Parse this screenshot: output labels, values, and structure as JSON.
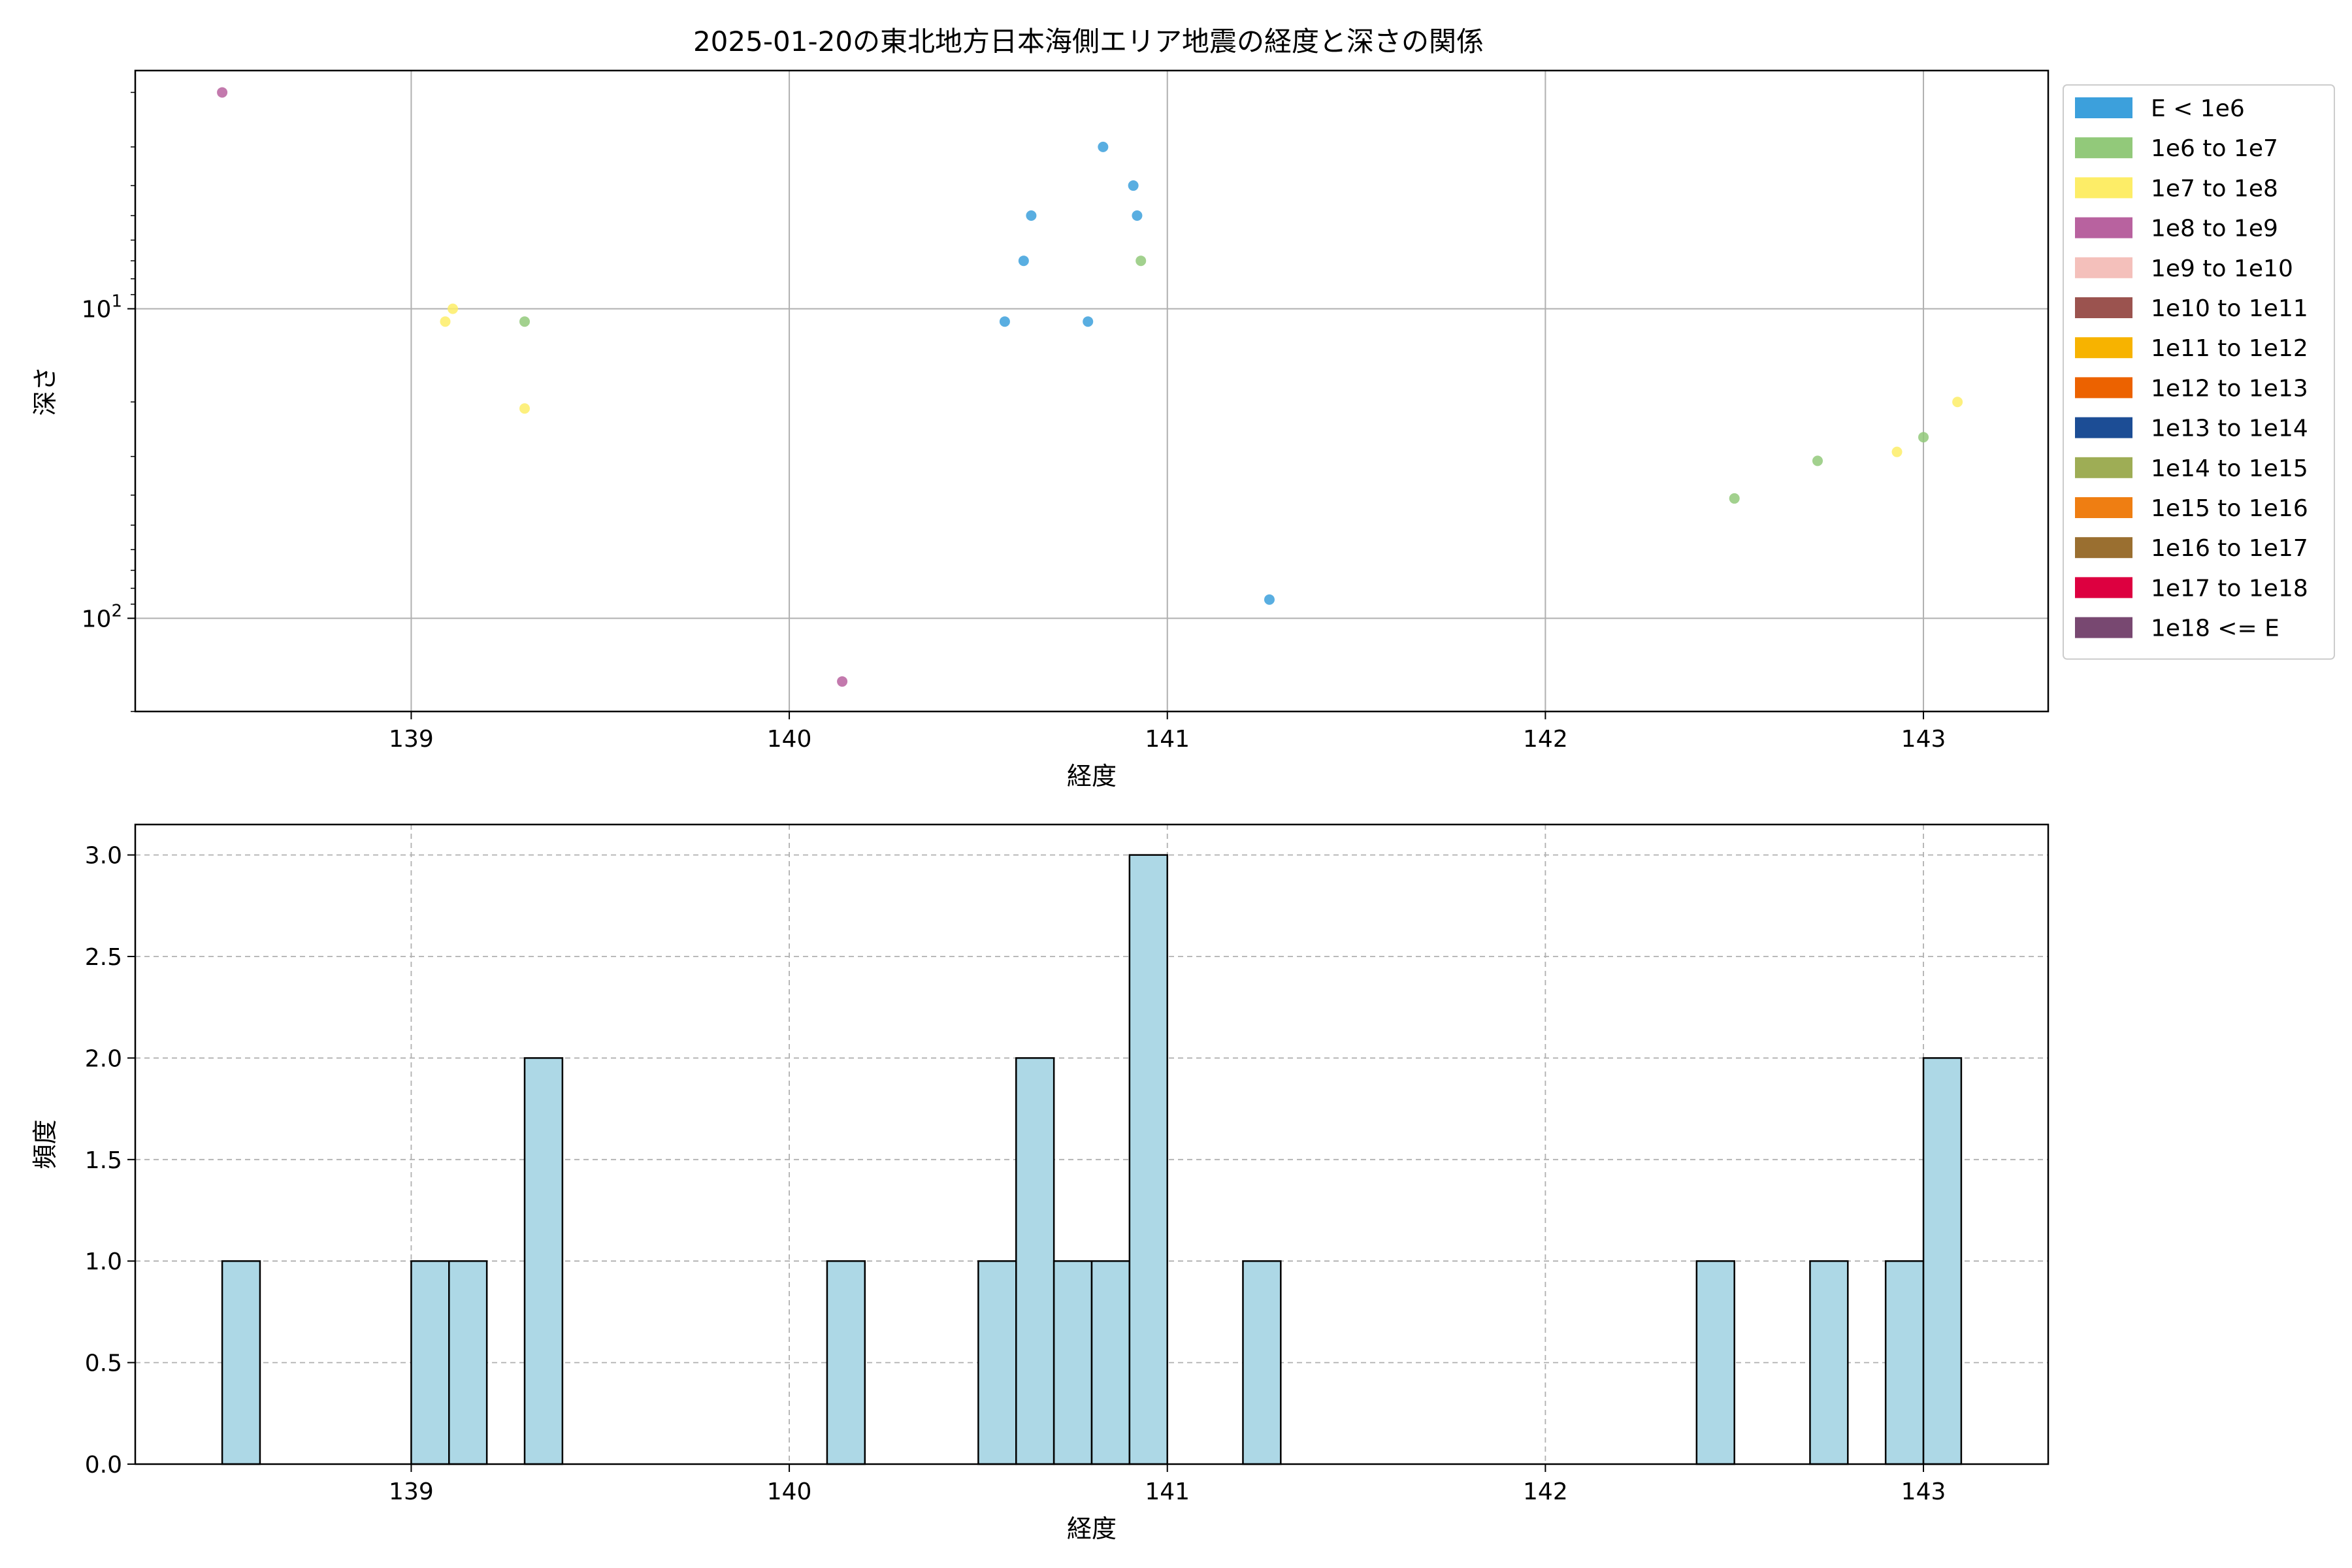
{
  "title": "2025-01-20の東北地方日本海側エリア地震の経度と深さの関係",
  "chart_data": [
    {
      "type": "scatter",
      "title": "2025-01-20の東北地方日本海側エリア地震の経度と深さの関係",
      "xlabel": "経度",
      "ylabel": "深さ",
      "xlim": [
        138.27,
        143.33
      ],
      "ylim": [
        200,
        1.7
      ],
      "y_scale": "log",
      "y_inverted": true,
      "grid": true,
      "legend_position": "outside-right",
      "xticks": [
        "139",
        "140",
        "141",
        "142",
        "143"
      ],
      "yticks": [
        {
          "value": 10,
          "base": "10",
          "exp": "1"
        },
        {
          "value": 100,
          "base": "10",
          "exp": "2"
        }
      ],
      "legend": [
        {
          "label": "E < 1e6",
          "color": "#3ca0dc"
        },
        {
          "label": "1e6 to 1e7",
          "color": "#92c97a"
        },
        {
          "label": "1e7 to 1e8",
          "color": "#fded67"
        },
        {
          "label": "1e8 to 1e9",
          "color": "#b8629f"
        },
        {
          "label": "1e9 to 1e10",
          "color": "#f4c0bb"
        },
        {
          "label": "1e10 to 1e11",
          "color": "#9b534f"
        },
        {
          "label": "1e11 to 1e12",
          "color": "#f7b300"
        },
        {
          "label": "1e12 to 1e13",
          "color": "#ec6200"
        },
        {
          "label": "1e13 to 1e14",
          "color": "#1c4d95"
        },
        {
          "label": "1e14 to 1e15",
          "color": "#9ead55"
        },
        {
          "label": "1e15 to 1e16",
          "color": "#ef7e12"
        },
        {
          "label": "1e16 to 1e17",
          "color": "#9a6f30"
        },
        {
          "label": "1e17 to 1e18",
          "color": "#dd0040"
        },
        {
          "label": "1e18 <= E",
          "color": "#784871"
        }
      ],
      "points": [
        {
          "x": 138.5,
          "y": 2,
          "class": "1e8 to 1e9"
        },
        {
          "x": 139.09,
          "y": 11,
          "class": "1e7 to 1e8"
        },
        {
          "x": 139.11,
          "y": 10,
          "class": "1e7 to 1e8"
        },
        {
          "x": 139.3,
          "y": 11,
          "class": "1e6 to 1e7"
        },
        {
          "x": 139.3,
          "y": 21,
          "class": "1e7 to 1e8"
        },
        {
          "x": 140.14,
          "y": 160,
          "class": "1e8 to 1e9"
        },
        {
          "x": 140.57,
          "y": 11,
          "class": "E < 1e6"
        },
        {
          "x": 140.62,
          "y": 7,
          "class": "E < 1e6"
        },
        {
          "x": 140.64,
          "y": 5,
          "class": "E < 1e6"
        },
        {
          "x": 140.79,
          "y": 11,
          "class": "E < 1e6"
        },
        {
          "x": 140.83,
          "y": 3,
          "class": "E < 1e6"
        },
        {
          "x": 140.91,
          "y": 4,
          "class": "E < 1e6"
        },
        {
          "x": 140.92,
          "y": 5,
          "class": "E < 1e6"
        },
        {
          "x": 140.93,
          "y": 7,
          "class": "1e6 to 1e7"
        },
        {
          "x": 141.27,
          "y": 87,
          "class": "E < 1e6"
        },
        {
          "x": 142.5,
          "y": 41,
          "class": "1e6 to 1e7"
        },
        {
          "x": 142.72,
          "y": 31,
          "class": "1e6 to 1e7"
        },
        {
          "x": 142.93,
          "y": 29,
          "class": "1e7 to 1e8"
        },
        {
          "x": 143.0,
          "y": 26,
          "class": "1e6 to 1e7"
        },
        {
          "x": 143.09,
          "y": 20,
          "class": "1e7 to 1e8"
        }
      ]
    },
    {
      "type": "bar",
      "chart_kind": "histogram",
      "xlabel": "経度",
      "ylabel": "頻度",
      "xlim": [
        138.27,
        143.33
      ],
      "ylim": [
        0,
        3.15
      ],
      "grid": true,
      "grid_style": "dashed",
      "color": "#add8e6",
      "edge_color": "#000000",
      "xticks": [
        "139",
        "140",
        "141",
        "142",
        "143"
      ],
      "yticks": [
        "0.0",
        "0.5",
        "1.0",
        "1.5",
        "2.0",
        "2.5",
        "3.0"
      ],
      "bins": [
        {
          "x0": 138.5,
          "x1": 138.6,
          "count": 1
        },
        {
          "x0": 139.0,
          "x1": 139.1,
          "count": 1
        },
        {
          "x0": 139.1,
          "x1": 139.2,
          "count": 1
        },
        {
          "x0": 139.3,
          "x1": 139.4,
          "count": 2
        },
        {
          "x0": 140.1,
          "x1": 140.2,
          "count": 1
        },
        {
          "x0": 140.5,
          "x1": 140.6,
          "count": 1
        },
        {
          "x0": 140.6,
          "x1": 140.7,
          "count": 2
        },
        {
          "x0": 140.7,
          "x1": 140.8,
          "count": 1
        },
        {
          "x0": 140.8,
          "x1": 140.9,
          "count": 1
        },
        {
          "x0": 140.9,
          "x1": 141.0,
          "count": 3
        },
        {
          "x0": 141.2,
          "x1": 141.3,
          "count": 1
        },
        {
          "x0": 142.4,
          "x1": 142.5,
          "count": 1
        },
        {
          "x0": 142.7,
          "x1": 142.8,
          "count": 1
        },
        {
          "x0": 142.9,
          "x1": 143.0,
          "count": 1
        },
        {
          "x0": 143.0,
          "x1": 143.1,
          "count": 2
        }
      ]
    }
  ]
}
